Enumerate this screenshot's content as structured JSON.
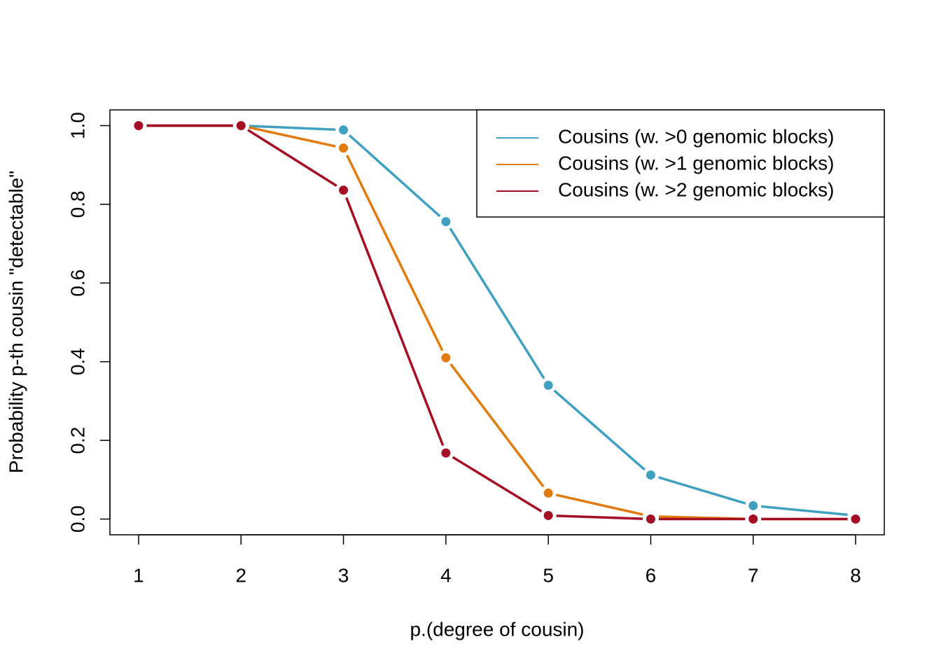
{
  "chart_data": {
    "type": "line",
    "x_label": "p.(degree of cousin)",
    "y_label": "Probability p-th cousin \"detectable\"",
    "x": [
      1,
      2,
      3,
      4,
      5,
      6,
      7,
      8
    ],
    "series": [
      {
        "name": "Cousins (w. >0 genomic blocks)",
        "color": "#3fa0c0",
        "values": [
          1,
          1,
          0.989,
          0.756,
          0.34,
          0.112,
          0.034,
          0.009
        ]
      },
      {
        "name": "Cousins (w. >1 genomic blocks)",
        "color": "#e07b10",
        "values": [
          1,
          1,
          0.943,
          0.41,
          0.066,
          0.007,
          0,
          0
        ]
      },
      {
        "name": "Cousins (w. >2 genomic blocks)",
        "color": "#a50f25",
        "values": [
          1,
          1,
          0.836,
          0.168,
          0.009,
          0,
          0,
          0
        ]
      }
    ],
    "xlim": [
      0.72,
      8.28
    ],
    "xticks": [
      1,
      2,
      3,
      4,
      5,
      6,
      7,
      8
    ],
    "ylim": [
      -0.04,
      1.04
    ],
    "yticks": [
      {
        "value": 0,
        "label": "0.0"
      },
      0.2,
      0.4,
      0.6,
      0.8,
      {
        "value": 1,
        "label": "1.0"
      }
    ],
    "legend": "topright",
    "grid": false
  }
}
